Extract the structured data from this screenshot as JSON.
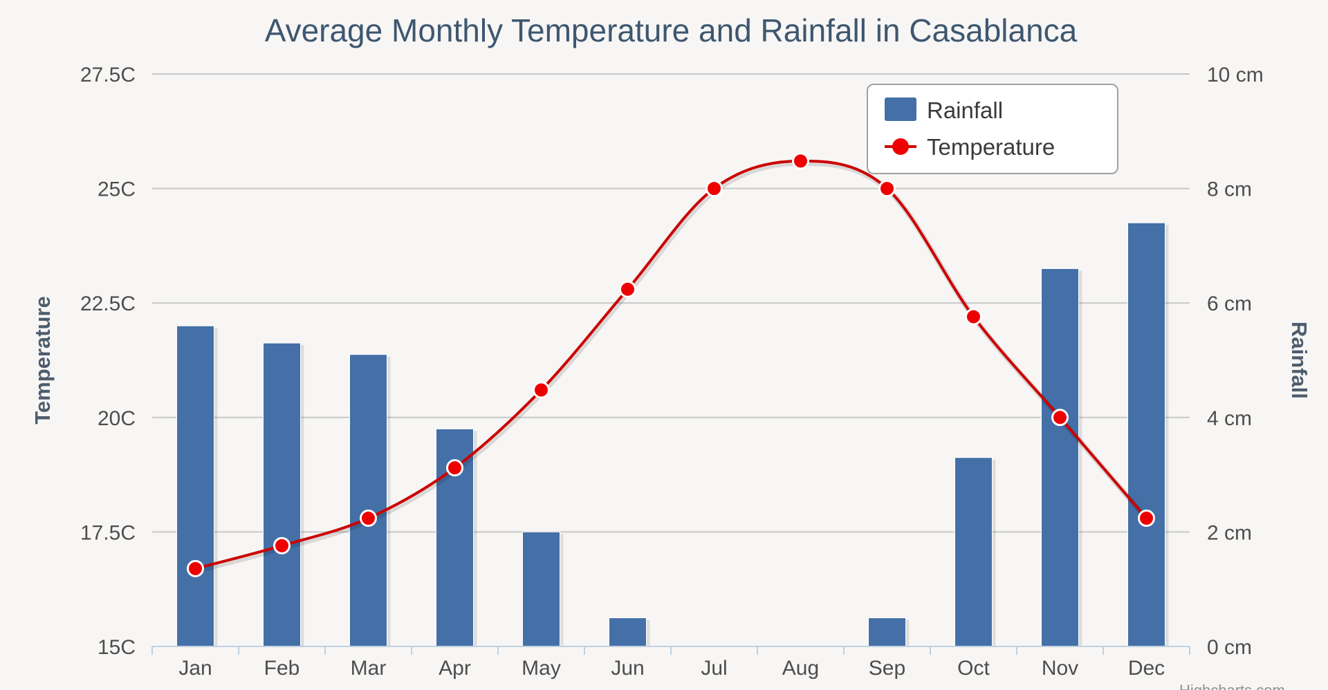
{
  "chart_data": {
    "type": "bar+line",
    "title": "Average Monthly Temperature and Rainfall in Casablanca",
    "categories": [
      "Jan",
      "Feb",
      "Mar",
      "Apr",
      "May",
      "Jun",
      "Jul",
      "Aug",
      "Sep",
      "Oct",
      "Nov",
      "Dec"
    ],
    "series": [
      {
        "name": "Rainfall",
        "type": "bar",
        "axis": "right",
        "unit": "cm",
        "color": "#4470a7",
        "values": [
          5.6,
          5.3,
          5.1,
          3.8,
          2.0,
          0.5,
          0.0,
          0.0,
          0.5,
          3.3,
          6.6,
          7.4
        ]
      },
      {
        "name": "Temperature",
        "type": "spline",
        "axis": "left",
        "unit": "C",
        "color": "#cc0000",
        "values": [
          16.7,
          17.2,
          17.8,
          18.9,
          20.6,
          22.8,
          25.0,
          25.6,
          25.0,
          22.2,
          20.0,
          17.8
        ]
      }
    ],
    "y_left": {
      "label": "Temperature",
      "min": 15,
      "max": 27.5,
      "ticks": [
        15,
        17.5,
        20,
        22.5,
        25,
        27.5
      ],
      "tick_labels": [
        "15C",
        "17.5C",
        "20C",
        "22.5C",
        "25C",
        "27.5C"
      ]
    },
    "y_right": {
      "label": "Rainfall",
      "min": 0,
      "max": 10,
      "ticks": [
        0,
        2,
        4,
        6,
        8,
        10
      ],
      "tick_labels": [
        "0 cm",
        "2 cm",
        "4 cm",
        "6 cm",
        "8 cm",
        "10 cm"
      ]
    },
    "grid": true,
    "legend": {
      "placement": "top-right",
      "entries": [
        "Rainfall",
        "Temperature"
      ]
    },
    "credit": "Highcharts.com"
  }
}
